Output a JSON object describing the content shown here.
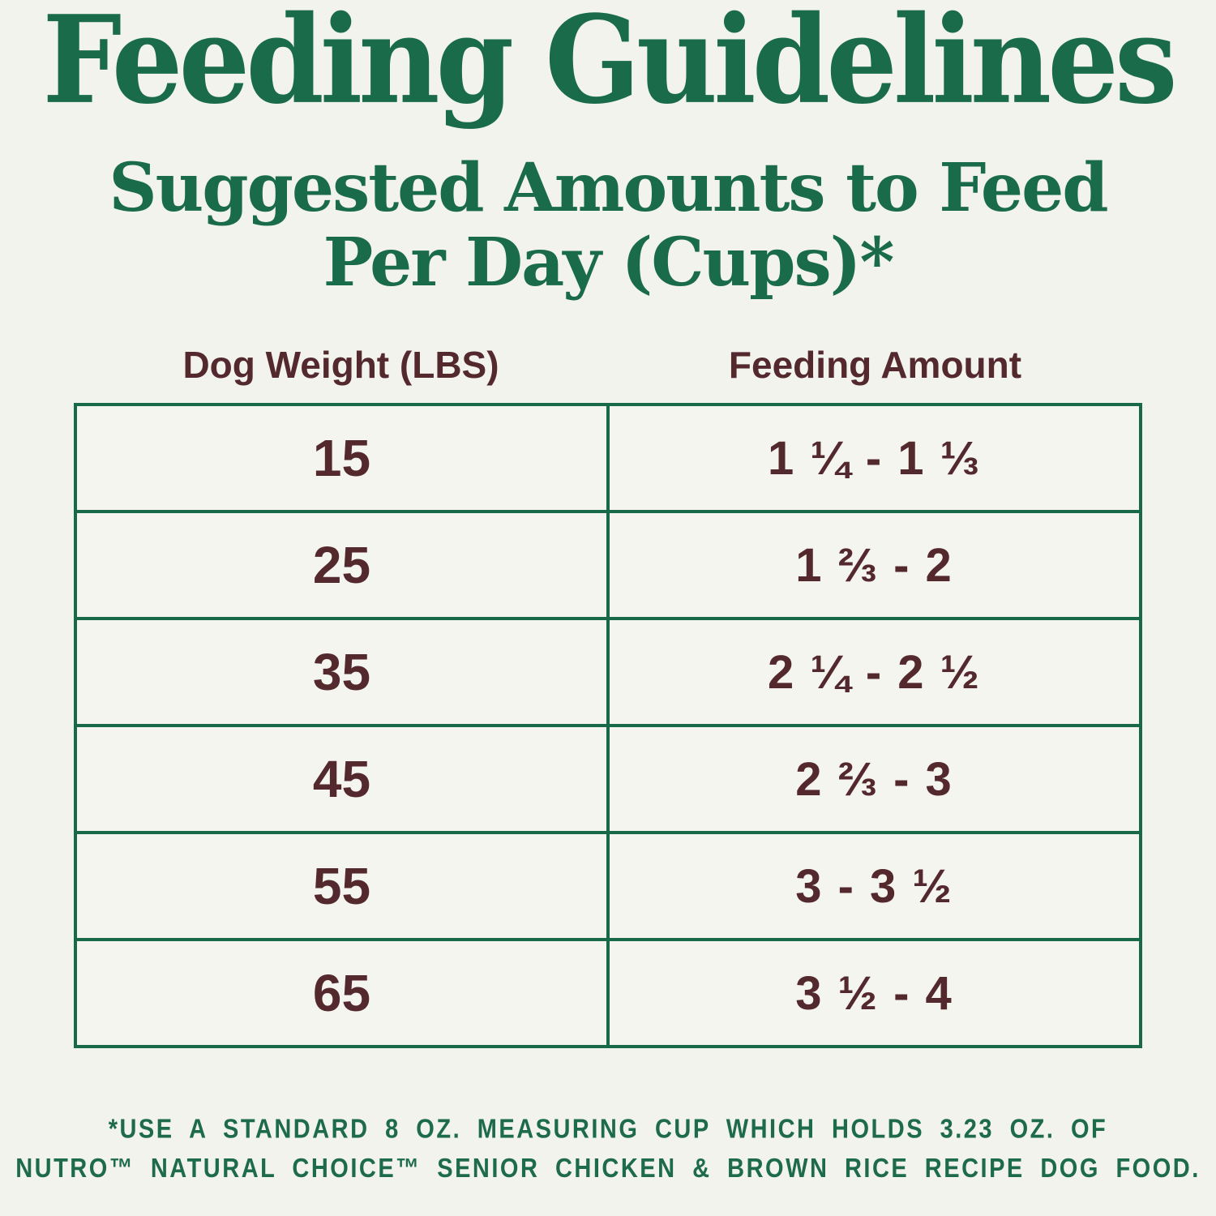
{
  "page": {
    "title": "Feeding Guidelines",
    "subtitle_line1": "Suggested Amounts to Feed",
    "subtitle_line2": "Per Day (Cups)*",
    "colors": {
      "background": "#f2f3ec",
      "heading_green": "#1a6b4a",
      "table_border_green": "#17694a",
      "text_brown": "#54292e",
      "footnote_green": "#1d6b4b"
    }
  },
  "table": {
    "headers": [
      "Dog Weight (LBS)",
      "Feeding Amount"
    ],
    "rows": [
      {
        "weight": "15",
        "amount": "1 ¼ - 1 ⅓"
      },
      {
        "weight": "25",
        "amount": "1 ⅔ - 2"
      },
      {
        "weight": "35",
        "amount": "2 ¼ - 2 ½"
      },
      {
        "weight": "45",
        "amount": "2 ⅔ - 3"
      },
      {
        "weight": "55",
        "amount": "3 - 3 ½"
      },
      {
        "weight": "65",
        "amount": "3 ½ - 4"
      }
    ]
  },
  "footnote": {
    "line1": "*USE A STANDARD 8 OZ. MEASURING CUP WHICH HOLDS 3.23 OZ. OF",
    "line2": "NUTRO™ NATURAL CHOICE™ SENIOR CHICKEN & BROWN RICE RECIPE DOG FOOD."
  },
  "chart_data": {
    "type": "table",
    "title": "Feeding Guidelines",
    "subtitle": "Suggested Amounts to Feed Per Day (Cups)*",
    "columns": [
      "Dog Weight (LBS)",
      "Feeding Amount"
    ],
    "rows": [
      [
        "15",
        "1 ¼ - 1 ⅓"
      ],
      [
        "25",
        "1 ⅔ - 2"
      ],
      [
        "35",
        "2 ¼ - 2 ½"
      ],
      [
        "45",
        "2 ⅔ - 3"
      ],
      [
        "55",
        "3 - 3 ½"
      ],
      [
        "65",
        "3 ½ - 4"
      ]
    ]
  }
}
